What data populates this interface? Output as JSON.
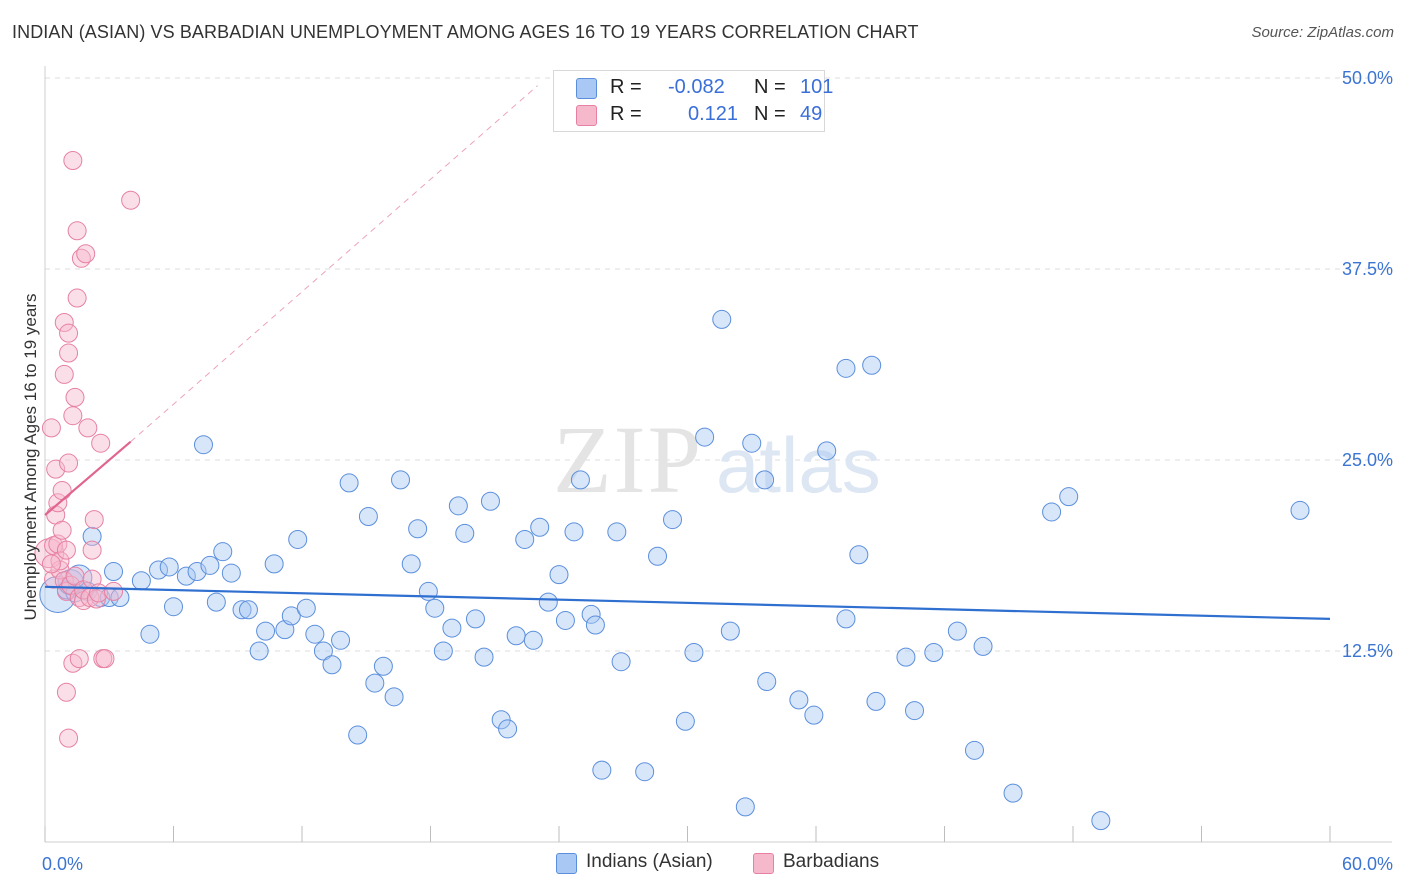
{
  "title": "INDIAN (ASIAN) VS BARBADIAN UNEMPLOYMENT AMONG AGES 16 TO 19 YEARS CORRELATION CHART",
  "source": "Source: ZipAtlas.com",
  "watermark": {
    "zip": "ZIP",
    "atlas": "atlas"
  },
  "legend_top": [
    {
      "r_label": "R =",
      "r_value": "-0.082",
      "n_label": "N =",
      "n_value": "101",
      "color": "#a9c8f3"
    },
    {
      "r_label": "R =",
      "r_value": "0.121",
      "n_label": "N =",
      "n_value": "49",
      "color": "#f6b8cb"
    }
  ],
  "legend_bottom": [
    {
      "label": "Indians (Asian)",
      "color": "#a9c8f3"
    },
    {
      "label": "Barbadians",
      "color": "#f6b8cb"
    }
  ],
  "chart_data": {
    "type": "scatter",
    "title": "INDIAN (ASIAN) VS BARBADIAN UNEMPLOYMENT AMONG AGES 16 TO 19 YEARS CORRELATION CHART",
    "xlabel": "",
    "ylabel": "Unemployment Among Ages 16 to 19 years",
    "xlim": [
      0,
      60
    ],
    "ylim": [
      0,
      50
    ],
    "x_tick_labels": [
      "0.0%",
      "60.0%"
    ],
    "y_ticks": [
      12.5,
      25.0,
      37.5,
      50.0
    ],
    "y_tick_labels": [
      "12.5%",
      "25.0%",
      "37.5%",
      "50.0%"
    ],
    "grid": true,
    "colors": {
      "indian_fill": "#a9c8f3",
      "indian_stroke": "#5b8fdc",
      "indian_line": "#2f6fd0",
      "barbadian_fill": "#f6b8cb",
      "barbadian_stroke": "#e681a3",
      "barbadian_line": "#e0668f",
      "axis_text": "#3b74d1",
      "grid": "#dcdcdc"
    },
    "series": [
      {
        "name": "Indians (Asian)",
        "trend": {
          "x": [
            0,
            60
          ],
          "y": [
            16.7,
            14.6
          ]
        },
        "points": [
          {
            "x": 0.6,
            "y": 16.2,
            "s": 2
          },
          {
            "x": 1.0,
            "y": 16.5
          },
          {
            "x": 1.2,
            "y": 17.0,
            "s": 1.4
          },
          {
            "x": 1.6,
            "y": 17.3,
            "s": 1.4
          },
          {
            "x": 2.0,
            "y": 16.4
          },
          {
            "x": 2.6,
            "y": 16.0
          },
          {
            "x": 2.2,
            "y": 20.0
          },
          {
            "x": 3.0,
            "y": 16.0
          },
          {
            "x": 3.2,
            "y": 17.7
          },
          {
            "x": 3.5,
            "y": 16.0
          },
          {
            "x": 4.5,
            "y": 17.1
          },
          {
            "x": 4.9,
            "y": 13.6
          },
          {
            "x": 5.3,
            "y": 17.8
          },
          {
            "x": 5.8,
            "y": 18.0
          },
          {
            "x": 6.0,
            "y": 15.4
          },
          {
            "x": 6.6,
            "y": 17.4
          },
          {
            "x": 7.1,
            "y": 17.7
          },
          {
            "x": 7.4,
            "y": 26.0
          },
          {
            "x": 7.7,
            "y": 18.1
          },
          {
            "x": 8.0,
            "y": 15.7
          },
          {
            "x": 8.3,
            "y": 19.0
          },
          {
            "x": 8.7,
            "y": 17.6
          },
          {
            "x": 9.2,
            "y": 15.2
          },
          {
            "x": 9.5,
            "y": 15.2
          },
          {
            "x": 10.0,
            "y": 12.5
          },
          {
            "x": 10.3,
            "y": 13.8
          },
          {
            "x": 10.7,
            "y": 18.2
          },
          {
            "x": 11.2,
            "y": 13.9
          },
          {
            "x": 11.5,
            "y": 14.8
          },
          {
            "x": 11.8,
            "y": 19.8
          },
          {
            "x": 12.2,
            "y": 15.3
          },
          {
            "x": 12.6,
            "y": 13.6
          },
          {
            "x": 13.0,
            "y": 12.5
          },
          {
            "x": 13.4,
            "y": 11.6
          },
          {
            "x": 13.8,
            "y": 13.2
          },
          {
            "x": 14.2,
            "y": 23.5
          },
          {
            "x": 14.6,
            "y": 7.0
          },
          {
            "x": 15.1,
            "y": 21.3
          },
          {
            "x": 15.4,
            "y": 10.4
          },
          {
            "x": 15.8,
            "y": 11.5
          },
          {
            "x": 16.3,
            "y": 9.5
          },
          {
            "x": 16.6,
            "y": 23.7
          },
          {
            "x": 17.1,
            "y": 18.2
          },
          {
            "x": 17.4,
            "y": 20.5
          },
          {
            "x": 17.9,
            "y": 16.4
          },
          {
            "x": 18.2,
            "y": 15.3
          },
          {
            "x": 18.6,
            "y": 12.5
          },
          {
            "x": 19.0,
            "y": 14.0
          },
          {
            "x": 19.3,
            "y": 22.0
          },
          {
            "x": 19.6,
            "y": 20.2
          },
          {
            "x": 20.1,
            "y": 14.6
          },
          {
            "x": 20.5,
            "y": 12.1
          },
          {
            "x": 20.8,
            "y": 22.3
          },
          {
            "x": 21.3,
            "y": 8.0
          },
          {
            "x": 21.6,
            "y": 7.4
          },
          {
            "x": 22.0,
            "y": 13.5
          },
          {
            "x": 22.4,
            "y": 19.8
          },
          {
            "x": 22.8,
            "y": 13.2
          },
          {
            "x": 23.1,
            "y": 20.6
          },
          {
            "x": 23.5,
            "y": 15.7
          },
          {
            "x": 24.0,
            "y": 17.5
          },
          {
            "x": 24.3,
            "y": 14.5
          },
          {
            "x": 24.7,
            "y": 20.3
          },
          {
            "x": 25.0,
            "y": 23.7
          },
          {
            "x": 25.5,
            "y": 14.9
          },
          {
            "x": 25.7,
            "y": 14.2
          },
          {
            "x": 26.0,
            "y": 4.7
          },
          {
            "x": 26.7,
            "y": 20.3
          },
          {
            "x": 26.9,
            "y": 11.8
          },
          {
            "x": 28.0,
            "y": 4.6
          },
          {
            "x": 28.6,
            "y": 18.7
          },
          {
            "x": 29.3,
            "y": 21.1
          },
          {
            "x": 29.9,
            "y": 7.9
          },
          {
            "x": 30.3,
            "y": 12.4
          },
          {
            "x": 30.8,
            "y": 26.5
          },
          {
            "x": 31.6,
            "y": 34.2
          },
          {
            "x": 32.0,
            "y": 13.8
          },
          {
            "x": 32.7,
            "y": 2.3
          },
          {
            "x": 33.0,
            "y": 26.1
          },
          {
            "x": 33.7,
            "y": 10.5
          },
          {
            "x": 35.2,
            "y": 9.3
          },
          {
            "x": 35.9,
            "y": 8.3
          },
          {
            "x": 36.5,
            "y": 25.6
          },
          {
            "x": 37.4,
            "y": 14.6
          },
          {
            "x": 37.4,
            "y": 31.0
          },
          {
            "x": 38.6,
            "y": 31.2
          },
          {
            "x": 38.8,
            "y": 9.2
          },
          {
            "x": 38.0,
            "y": 18.8
          },
          {
            "x": 40.2,
            "y": 12.1
          },
          {
            "x": 40.6,
            "y": 8.6
          },
          {
            "x": 41.5,
            "y": 12.4
          },
          {
            "x": 42.6,
            "y": 13.8
          },
          {
            "x": 43.4,
            "y": 6.0
          },
          {
            "x": 43.8,
            "y": 12.8
          },
          {
            "x": 45.2,
            "y": 3.2
          },
          {
            "x": 47.0,
            "y": 21.6
          },
          {
            "x": 47.8,
            "y": 22.6
          },
          {
            "x": 49.3,
            "y": 1.4
          },
          {
            "x": 58.6,
            "y": 21.7
          },
          {
            "x": 33.6,
            "y": 23.7
          },
          {
            "x": 1.4,
            "y": 16.3
          }
        ]
      },
      {
        "name": "Barbadians",
        "trend": {
          "x": [
            0,
            4
          ],
          "y": [
            21.4,
            26.2
          ]
        },
        "trend_ext": {
          "x": [
            4,
            23
          ],
          "y": [
            26.2,
            49.5
          ]
        },
        "points": [
          {
            "x": 0.2,
            "y": 18.9,
            "s": 1.6
          },
          {
            "x": 0.3,
            "y": 27.1
          },
          {
            "x": 0.4,
            "y": 17.2
          },
          {
            "x": 0.4,
            "y": 19.4
          },
          {
            "x": 0.5,
            "y": 24.4
          },
          {
            "x": 0.5,
            "y": 21.4
          },
          {
            "x": 0.6,
            "y": 22.2
          },
          {
            "x": 0.6,
            "y": 19.5
          },
          {
            "x": 0.7,
            "y": 17.8
          },
          {
            "x": 0.7,
            "y": 18.4
          },
          {
            "x": 0.8,
            "y": 20.4
          },
          {
            "x": 0.8,
            "y": 23.0
          },
          {
            "x": 0.9,
            "y": 34.0
          },
          {
            "x": 0.9,
            "y": 30.6
          },
          {
            "x": 0.9,
            "y": 17.1
          },
          {
            "x": 1.0,
            "y": 19.1
          },
          {
            "x": 1.0,
            "y": 16.4
          },
          {
            "x": 1.0,
            "y": 9.8
          },
          {
            "x": 1.1,
            "y": 32.0
          },
          {
            "x": 1.1,
            "y": 33.3
          },
          {
            "x": 1.1,
            "y": 6.8
          },
          {
            "x": 1.1,
            "y": 24.8
          },
          {
            "x": 1.2,
            "y": 16.8
          },
          {
            "x": 1.3,
            "y": 27.9
          },
          {
            "x": 1.3,
            "y": 44.6
          },
          {
            "x": 1.3,
            "y": 11.7
          },
          {
            "x": 1.4,
            "y": 29.1
          },
          {
            "x": 1.4,
            "y": 17.4
          },
          {
            "x": 1.5,
            "y": 40.0
          },
          {
            "x": 1.5,
            "y": 35.6
          },
          {
            "x": 1.6,
            "y": 16.0
          },
          {
            "x": 1.6,
            "y": 12.0
          },
          {
            "x": 1.7,
            "y": 38.2
          },
          {
            "x": 1.8,
            "y": 15.8
          },
          {
            "x": 1.8,
            "y": 16.5
          },
          {
            "x": 1.9,
            "y": 38.5
          },
          {
            "x": 2.0,
            "y": 27.1
          },
          {
            "x": 2.1,
            "y": 16.0
          },
          {
            "x": 2.2,
            "y": 17.2
          },
          {
            "x": 2.2,
            "y": 19.1
          },
          {
            "x": 2.3,
            "y": 21.1
          },
          {
            "x": 2.4,
            "y": 15.9
          },
          {
            "x": 2.5,
            "y": 16.3
          },
          {
            "x": 2.6,
            "y": 26.1
          },
          {
            "x": 2.7,
            "y": 12.0
          },
          {
            "x": 2.8,
            "y": 12.0
          },
          {
            "x": 3.2,
            "y": 16.4
          },
          {
            "x": 4.0,
            "y": 42.0
          },
          {
            "x": 0.3,
            "y": 18.2
          }
        ]
      }
    ]
  }
}
